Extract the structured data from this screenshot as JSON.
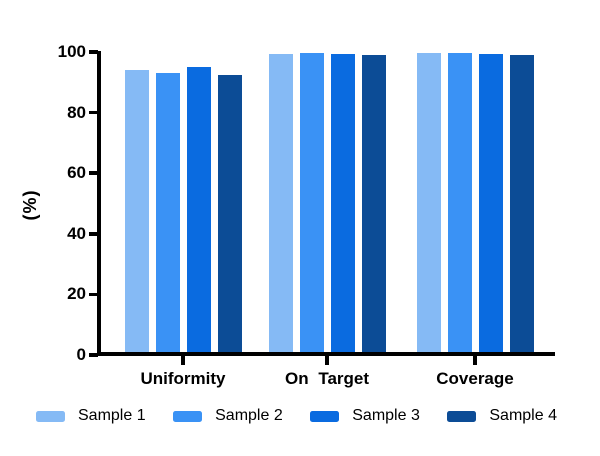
{
  "chart_data": {
    "type": "bar",
    "title": "",
    "xlabel": "",
    "ylabel": "(%)",
    "ylim": [
      0,
      100
    ],
    "yticks": [
      0,
      20,
      40,
      60,
      80,
      100
    ],
    "grid": false,
    "legend_position": "bottom",
    "axis_color": "#000000",
    "text_color": "#000000",
    "categories": [
      "Uniformity",
      "On Target",
      "Coverage"
    ],
    "series": [
      {
        "name": "Sample 1",
        "color": "#85BAF5",
        "values": [
          94.1,
          99.3,
          99.6
        ]
      },
      {
        "name": "Sample 2",
        "color": "#3A92F5",
        "values": [
          93.2,
          99.6,
          99.8
        ]
      },
      {
        "name": "Sample 3",
        "color": "#0A6BE0",
        "values": [
          94.9,
          99.3,
          99.4
        ]
      },
      {
        "name": "Sample 4",
        "color": "#0C4C96",
        "values": [
          92.5,
          98.9,
          99.1
        ]
      }
    ]
  }
}
